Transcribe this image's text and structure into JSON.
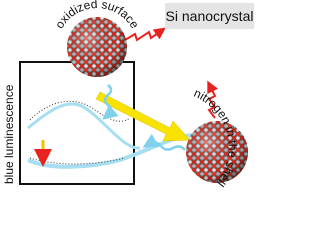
{
  "labels": {
    "product": "Si nanocrystal",
    "surface": "oxidized surface",
    "shell": "nitrogen in the shell",
    "axis": "blue luminescence"
  }
}
